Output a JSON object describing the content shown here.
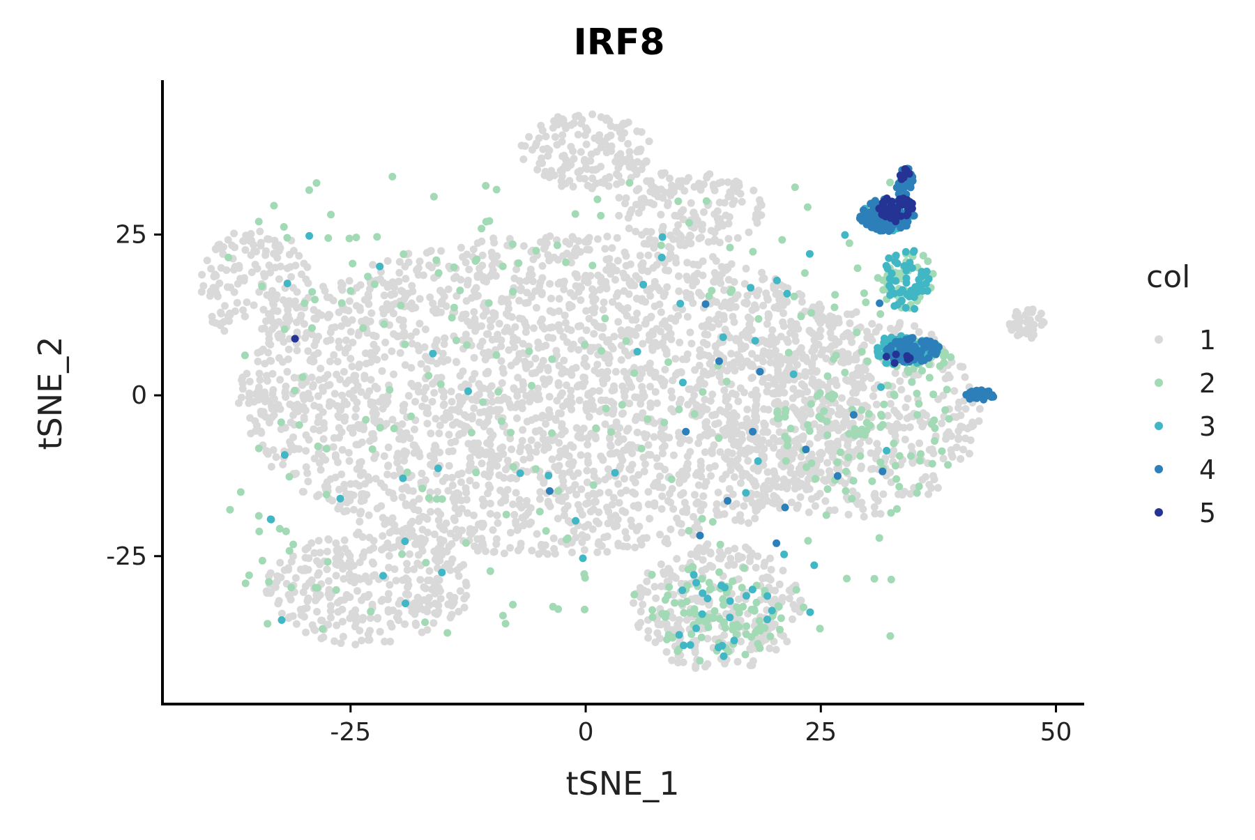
{
  "chart_data": {
    "type": "scatter",
    "title": "IRF8",
    "xlabel": "tSNE_1",
    "ylabel": "tSNE_2",
    "xlim": [
      -45,
      53
    ],
    "ylim": [
      -48,
      49
    ],
    "xticks": [
      -25,
      0,
      25,
      50
    ],
    "xtick_labels": [
      "-25",
      "0",
      "25",
      "50"
    ],
    "yticks": [
      -25,
      0,
      25
    ],
    "ytick_labels": [
      "-25",
      "0",
      "25"
    ],
    "grid": false,
    "legend": {
      "title": "col",
      "position": "right",
      "entries": [
        {
          "label": "1",
          "color": "#d9d9d9"
        },
        {
          "label": "2",
          "color": "#a1dab4"
        },
        {
          "label": "3",
          "color": "#41b6c4"
        },
        {
          "label": "4",
          "color": "#2c7fb8"
        },
        {
          "label": "5",
          "color": "#253494"
        }
      ]
    },
    "clusters": [
      {
        "category": "1",
        "shape": "cloud",
        "cx": -3,
        "cy": 0,
        "rx": 34,
        "ry": 25,
        "n": 2600
      },
      {
        "category": "1",
        "shape": "cloud",
        "cx": -35,
        "cy": 17,
        "rx": 6,
        "ry": 9,
        "n": 160
      },
      {
        "category": "1",
        "shape": "cloud",
        "cx": 0,
        "cy": 38,
        "rx": 7,
        "ry": 6,
        "n": 160
      },
      {
        "category": "1",
        "shape": "cloud",
        "cx": 11,
        "cy": 29,
        "rx": 8,
        "ry": 6,
        "n": 160
      },
      {
        "category": "1",
        "shape": "cloud",
        "cx": -23,
        "cy": -30,
        "rx": 11,
        "ry": 9,
        "n": 320
      },
      {
        "category": "1",
        "shape": "cloud",
        "cx": 14,
        "cy": -33,
        "rx": 9,
        "ry": 10,
        "n": 280
      },
      {
        "category": "1",
        "shape": "cloud",
        "cx": 28,
        "cy": -3,
        "rx": 14,
        "ry": 16,
        "n": 460
      },
      {
        "category": "1",
        "shape": "cloud",
        "cx": 47,
        "cy": 11,
        "rx": 2,
        "ry": 2.5,
        "n": 40
      },
      {
        "category": "2",
        "shape": "scatter",
        "cx": -2,
        "cy": -2,
        "rx": 36,
        "ry": 36,
        "n": 230
      },
      {
        "category": "2",
        "shape": "cloud",
        "cx": 14,
        "cy": -34,
        "rx": 7,
        "ry": 8,
        "n": 90
      },
      {
        "category": "2",
        "shape": "cloud",
        "cx": 30,
        "cy": -5,
        "rx": 10,
        "ry": 12,
        "n": 80
      },
      {
        "category": "2",
        "shape": "cloud",
        "cx": 34,
        "cy": 18,
        "rx": 3,
        "ry": 5,
        "n": 55
      },
      {
        "category": "2",
        "shape": "cloud",
        "cx": 35,
        "cy": 6,
        "rx": 4,
        "ry": 2.5,
        "n": 40
      },
      {
        "category": "3",
        "shape": "scatter",
        "cx": 0,
        "cy": -5,
        "rx": 34,
        "ry": 30,
        "n": 45
      },
      {
        "category": "3",
        "shape": "cloud",
        "cx": 34,
        "cy": 18,
        "rx": 2.5,
        "ry": 5,
        "n": 55
      },
      {
        "category": "3",
        "shape": "cloud",
        "cx": 34,
        "cy": 7,
        "rx": 3.5,
        "ry": 2.5,
        "n": 90
      },
      {
        "category": "3",
        "shape": "cloud",
        "cx": 32,
        "cy": 28,
        "rx": 3,
        "ry": 2.5,
        "n": 30
      },
      {
        "category": "3",
        "shape": "cloud",
        "cx": 14,
        "cy": -34,
        "rx": 6,
        "ry": 7,
        "n": 20
      },
      {
        "category": "4",
        "shape": "cloud",
        "cx": 32,
        "cy": 28,
        "rx": 3,
        "ry": 2.5,
        "n": 120
      },
      {
        "category": "4",
        "shape": "cloud",
        "cx": 34,
        "cy": 33,
        "rx": 1,
        "ry": 2.5,
        "n": 30
      },
      {
        "category": "4",
        "shape": "cloud",
        "cx": 35,
        "cy": 7,
        "rx": 3,
        "ry": 2,
        "n": 80
      },
      {
        "category": "4",
        "shape": "cloud",
        "cx": 42,
        "cy": 0,
        "rx": 1.6,
        "ry": 0.8,
        "n": 35
      },
      {
        "category": "4",
        "shape": "scatter",
        "cx": 15,
        "cy": -5,
        "rx": 20,
        "ry": 20,
        "n": 15
      },
      {
        "category": "5",
        "shape": "cloud",
        "cx": 33,
        "cy": 29,
        "rx": 2,
        "ry": 2,
        "n": 45
      },
      {
        "category": "5",
        "shape": "cloud",
        "cx": 34,
        "cy": 34,
        "rx": 0.6,
        "ry": 1.2,
        "n": 8
      },
      {
        "category": "5",
        "shape": "cloud",
        "cx": 33,
        "cy": 6,
        "rx": 1.5,
        "ry": 1,
        "n": 6
      },
      {
        "category": "5",
        "shape": "scatter",
        "cx": -31,
        "cy": 9,
        "rx": 0.4,
        "ry": 0.4,
        "n": 1
      }
    ]
  }
}
